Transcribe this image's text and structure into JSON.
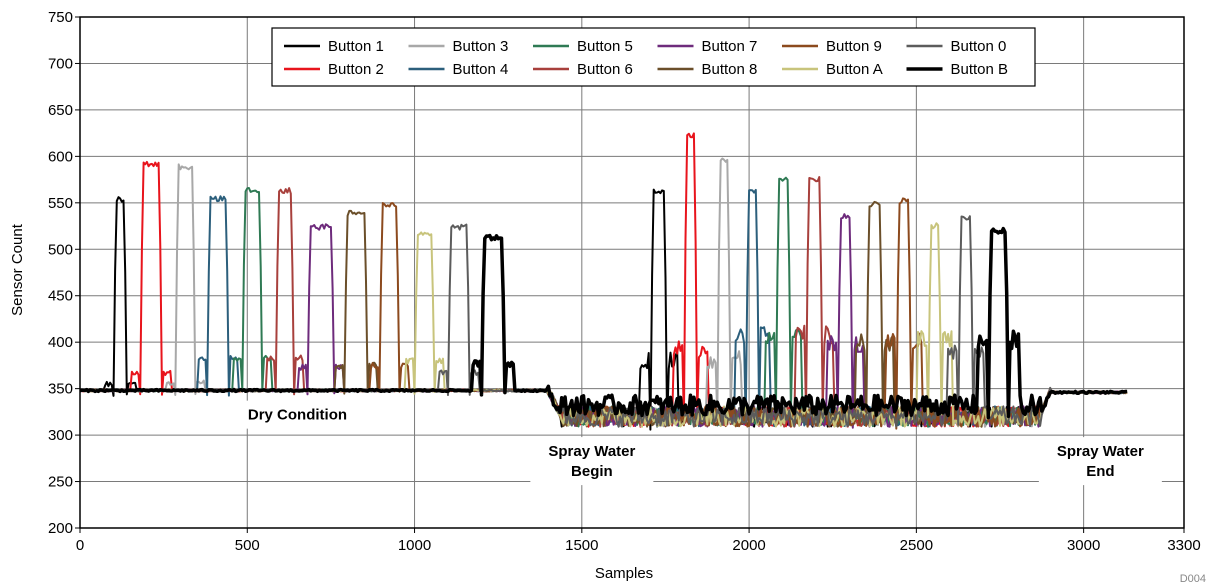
{
  "chart_data": {
    "type": "line",
    "xlabel": "Samples",
    "ylabel": "Sensor Count",
    "xlim": [
      0,
      3300
    ],
    "ylim": [
      200,
      750
    ],
    "xticks": [
      0,
      500,
      1000,
      1500,
      2000,
      2500,
      3000,
      3300
    ],
    "yticks": [
      200,
      250,
      300,
      350,
      400,
      450,
      500,
      550,
      600,
      650,
      700,
      750
    ],
    "grid": true,
    "legend_position": "top-center",
    "figure_id": "D004",
    "annotations": [
      {
        "text": [
          "Dry Condition"
        ],
        "x": 650,
        "y": 322
      },
      {
        "text": [
          "Spray Water",
          "Begin"
        ],
        "x": 1530,
        "y": 272
      },
      {
        "text": [
          "Spray Water",
          "End"
        ],
        "x": 3050,
        "y": 272
      }
    ],
    "baseline_dry": 348,
    "baseline_wet": 320,
    "wet_range": [
      1400,
      2900
    ],
    "series": [
      {
        "name": "Button 1",
        "color": "#000000",
        "width": 2,
        "dry": {
          "x": [
            100,
            140
          ],
          "peak": 557
        },
        "wet": {
          "x": [
            1705,
            1755
          ],
          "peak": 565
        },
        "side": 360
      },
      {
        "name": "Button 2",
        "color": "#e8141c",
        "width": 2,
        "dry": {
          "x": [
            180,
            245
          ],
          "peak": 595
        },
        "wet": {
          "x": [
            1805,
            1845
          ],
          "peak": 625
        },
        "side": 372
      },
      {
        "name": "Button 3",
        "color": "#a8a8a8",
        "width": 2,
        "dry": {
          "x": [
            285,
            345
          ],
          "peak": 592
        },
        "wet": {
          "x": [
            1905,
            1945
          ],
          "peak": 600
        },
        "side": 362
      },
      {
        "name": "Button 4",
        "color": "#2c5f7c",
        "width": 2,
        "dry": {
          "x": [
            380,
            445
          ],
          "peak": 557
        },
        "wet": {
          "x": [
            1990,
            2030
          ],
          "peak": 565
        },
        "side": 388
      },
      {
        "name": "Button 5",
        "color": "#2f7a54",
        "width": 2,
        "dry": {
          "x": [
            485,
            545
          ],
          "peak": 566
        },
        "wet": {
          "x": [
            2080,
            2125
          ],
          "peak": 578
        },
        "side": 388
      },
      {
        "name": "Button 6",
        "color": "#a8403c",
        "width": 2,
        "dry": {
          "x": [
            585,
            640
          ],
          "peak": 566
        },
        "wet": {
          "x": [
            2170,
            2220
          ],
          "peak": 578
        },
        "side": 388
      },
      {
        "name": "Button 7",
        "color": "#6e2b7c",
        "width": 2,
        "dry": {
          "x": [
            680,
            760
          ],
          "peak": 527
        },
        "wet": {
          "x": [
            2265,
            2310
          ],
          "peak": 538
        },
        "side": 378
      },
      {
        "name": "Button 8",
        "color": "#6b4f2a",
        "width": 2,
        "dry": {
          "x": [
            790,
            860
          ],
          "peak": 542
        },
        "wet": {
          "x": [
            2350,
            2400
          ],
          "peak": 552
        },
        "side": 380
      },
      {
        "name": "Button 9",
        "color": "#8c4a1e",
        "width": 2,
        "dry": {
          "x": [
            895,
            955
          ],
          "peak": 551
        },
        "wet": {
          "x": [
            2440,
            2485
          ],
          "peak": 555
        },
        "side": 380
      },
      {
        "name": "Button A",
        "color": "#c8c47c",
        "width": 2,
        "dry": {
          "x": [
            1000,
            1060
          ],
          "peak": 520
        },
        "wet": {
          "x": [
            2535,
            2575
          ],
          "peak": 528
        },
        "side": 385
      },
      {
        "name": "Button 0",
        "color": "#5c5c5c",
        "width": 2,
        "dry": {
          "x": [
            1100,
            1165
          ],
          "peak": 527
        },
        "wet": {
          "x": [
            2625,
            2670
          ],
          "peak": 538
        },
        "side": 372
      },
      {
        "name": "Button B",
        "color": "#000000",
        "width": 3.5,
        "dry": {
          "x": [
            1200,
            1270
          ],
          "peak": 515
        },
        "wet": {
          "x": [
            2715,
            2775
          ],
          "peak": 523
        },
        "side": 382
      }
    ]
  }
}
